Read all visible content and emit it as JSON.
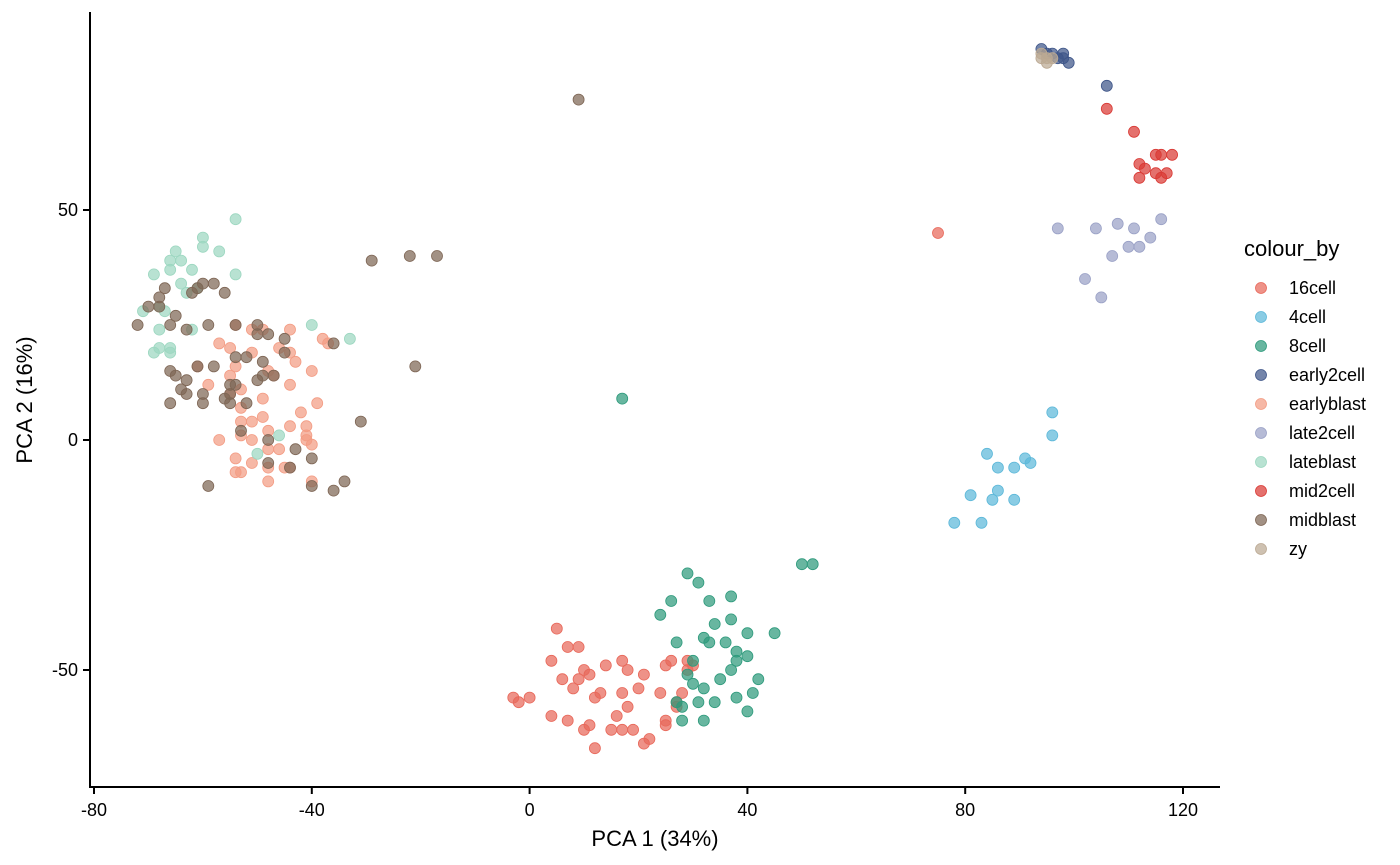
{
  "chart_data": {
    "type": "scatter",
    "title": "",
    "xlabel": "PCA 1 (34%)",
    "ylabel": "PCA 2 (16%)",
    "xlim": [
      -81,
      127
    ],
    "ylim": [
      -76,
      86
    ],
    "x_ticks": [
      -80,
      -40,
      0,
      40,
      80,
      120
    ],
    "x_tick_labels": [
      "-80",
      "-40",
      "0",
      "40",
      "80",
      "120"
    ],
    "y_ticks": [
      -50,
      0,
      50
    ],
    "y_tick_labels": [
      "-50",
      "0",
      "50"
    ],
    "grid": false,
    "legend": {
      "title": "colour_by",
      "position": "right"
    },
    "series": [
      {
        "name": "16cell",
        "color": "#e8685a",
        "points": [
          [
            75,
            45
          ],
          [
            5,
            -41
          ],
          [
            9,
            -45
          ],
          [
            7,
            -45
          ],
          [
            4,
            -48
          ],
          [
            10,
            -50
          ],
          [
            11,
            -51
          ],
          [
            14,
            -49
          ],
          [
            17,
            -48
          ],
          [
            18,
            -50
          ],
          [
            21,
            -51
          ],
          [
            6,
            -52
          ],
          [
            9,
            -52
          ],
          [
            8,
            -54
          ],
          [
            12,
            -56
          ],
          [
            13,
            -55
          ],
          [
            17,
            -55
          ],
          [
            20,
            -54
          ],
          [
            24,
            -55
          ],
          [
            -3,
            -56
          ],
          [
            -2,
            -57
          ],
          [
            0,
            -56
          ],
          [
            4,
            -60
          ],
          [
            7,
            -61
          ],
          [
            11,
            -62
          ],
          [
            10,
            -63
          ],
          [
            16,
            -60
          ],
          [
            18,
            -58
          ],
          [
            15,
            -63
          ],
          [
            17,
            -63
          ],
          [
            19,
            -63
          ],
          [
            22,
            -65
          ],
          [
            21,
            -66
          ],
          [
            12,
            -67
          ],
          [
            25,
            -61
          ],
          [
            25,
            -62
          ],
          [
            27,
            -57
          ],
          [
            27,
            -58
          ],
          [
            28,
            -55
          ],
          [
            29,
            -48
          ],
          [
            29,
            -50
          ],
          [
            30,
            -49
          ],
          [
            26,
            -48
          ],
          [
            25,
            -49
          ]
        ]
      },
      {
        "name": "4cell",
        "color": "#5db8d9",
        "points": [
          [
            96,
            6
          ],
          [
            96,
            1
          ],
          [
            84,
            -3
          ],
          [
            86,
            -6
          ],
          [
            89,
            -6
          ],
          [
            92,
            -5
          ],
          [
            91,
            -4
          ],
          [
            81,
            -12
          ],
          [
            86,
            -11
          ],
          [
            85,
            -13
          ],
          [
            89,
            -13
          ],
          [
            78,
            -18
          ],
          [
            83,
            -18
          ]
        ]
      },
      {
        "name": "8cell",
        "color": "#2e9a7c",
        "points": [
          [
            17,
            9
          ],
          [
            29,
            -29
          ],
          [
            31,
            -31
          ],
          [
            50,
            -27
          ],
          [
            52,
            -27
          ],
          [
            26,
            -35
          ],
          [
            33,
            -35
          ],
          [
            24,
            -38
          ],
          [
            37,
            -34
          ],
          [
            34,
            -40
          ],
          [
            37,
            -39
          ],
          [
            40,
            -42
          ],
          [
            45,
            -42
          ],
          [
            27,
            -44
          ],
          [
            33,
            -44
          ],
          [
            32,
            -43
          ],
          [
            36,
            -44
          ],
          [
            38,
            -46
          ],
          [
            38,
            -48
          ],
          [
            40,
            -47
          ],
          [
            30,
            -48
          ],
          [
            29,
            -51
          ],
          [
            30,
            -53
          ],
          [
            32,
            -54
          ],
          [
            37,
            -50
          ],
          [
            42,
            -52
          ],
          [
            35,
            -52
          ],
          [
            41,
            -55
          ],
          [
            38,
            -56
          ],
          [
            27,
            -57
          ],
          [
            28,
            -58
          ],
          [
            31,
            -57
          ],
          [
            34,
            -57
          ],
          [
            40,
            -59
          ],
          [
            28,
            -61
          ],
          [
            32,
            -61
          ]
        ]
      },
      {
        "name": "early2cell",
        "color": "#3f5689",
        "points": [
          [
            94,
            85
          ],
          [
            95,
            84
          ],
          [
            96,
            84
          ],
          [
            98,
            84
          ],
          [
            98,
            83
          ],
          [
            99,
            82
          ],
          [
            97,
            83
          ],
          [
            106,
            77
          ]
        ]
      },
      {
        "name": "earlyblast",
        "color": "#f39c84",
        "points": [
          [
            -54,
            25
          ],
          [
            -51,
            24
          ],
          [
            -49,
            24
          ],
          [
            -44,
            24
          ],
          [
            -38,
            22
          ],
          [
            -37,
            21
          ],
          [
            -57,
            21
          ],
          [
            -55,
            20
          ],
          [
            -51,
            19
          ],
          [
            -46,
            20
          ],
          [
            -44,
            19
          ],
          [
            -61,
            16
          ],
          [
            -54,
            16
          ],
          [
            -43,
            17
          ],
          [
            -55,
            14
          ],
          [
            -48,
            15
          ],
          [
            -47,
            14
          ],
          [
            -40,
            15
          ],
          [
            -59,
            12
          ],
          [
            -53,
            11
          ],
          [
            -44,
            12
          ],
          [
            -55,
            10
          ],
          [
            -49,
            9
          ],
          [
            -39,
            8
          ],
          [
            -53,
            7
          ],
          [
            -42,
            6
          ],
          [
            -53,
            4
          ],
          [
            -51,
            4
          ],
          [
            -49,
            5
          ],
          [
            -41,
            3
          ],
          [
            -48,
            2
          ],
          [
            -44,
            3
          ],
          [
            -41,
            1
          ],
          [
            -57,
            0
          ],
          [
            -53,
            1
          ],
          [
            -51,
            0
          ],
          [
            -40,
            -1
          ],
          [
            -41,
            0
          ],
          [
            -48,
            -2
          ],
          [
            -46,
            -2
          ],
          [
            -54,
            -4
          ],
          [
            -51,
            -5
          ],
          [
            -45,
            -6
          ],
          [
            -44,
            -6
          ],
          [
            -48,
            -6
          ],
          [
            -53,
            -7
          ],
          [
            -54,
            -7
          ],
          [
            -48,
            -9
          ],
          [
            -40,
            -9
          ]
        ]
      },
      {
        "name": "late2cell",
        "color": "#9aa1c6",
        "points": [
          [
            97,
            46
          ],
          [
            104,
            46
          ],
          [
            108,
            47
          ],
          [
            111,
            46
          ],
          [
            116,
            48
          ],
          [
            114,
            44
          ],
          [
            112,
            42
          ],
          [
            110,
            42
          ],
          [
            107,
            40
          ],
          [
            102,
            35
          ],
          [
            105,
            31
          ]
        ]
      },
      {
        "name": "lateblast",
        "color": "#9cd7c0",
        "points": [
          [
            -54,
            48
          ],
          [
            -60,
            44
          ],
          [
            -60,
            42
          ],
          [
            -65,
            41
          ],
          [
            -57,
            41
          ],
          [
            -66,
            39
          ],
          [
            -64,
            39
          ],
          [
            -69,
            36
          ],
          [
            -66,
            37
          ],
          [
            -62,
            37
          ],
          [
            -54,
            36
          ],
          [
            -64,
            34
          ],
          [
            -61,
            33
          ],
          [
            -63,
            32
          ],
          [
            -68,
            29
          ],
          [
            -67,
            28
          ],
          [
            -71,
            28
          ],
          [
            -62,
            24
          ],
          [
            -40,
            25
          ],
          [
            -33,
            22
          ],
          [
            -68,
            24
          ],
          [
            -66,
            20
          ],
          [
            -68,
            20
          ],
          [
            -69,
            19
          ],
          [
            -66,
            19
          ],
          [
            -50,
            -3
          ],
          [
            -46,
            1
          ]
        ]
      },
      {
        "name": "mid2cell",
        "color": "#d93a35",
        "points": [
          [
            106,
            72
          ],
          [
            111,
            67
          ],
          [
            115,
            62
          ],
          [
            116,
            62
          ],
          [
            118,
            62
          ],
          [
            112,
            60
          ],
          [
            113,
            59
          ],
          [
            115,
            58
          ],
          [
            117,
            58
          ],
          [
            112,
            57
          ],
          [
            116,
            57
          ]
        ]
      },
      {
        "name": "midblast",
        "color": "#7e6655",
        "points": [
          [
            9,
            74
          ],
          [
            -29,
            39
          ],
          [
            -22,
            40
          ],
          [
            -17,
            40
          ],
          [
            -60,
            34
          ],
          [
            -61,
            33
          ],
          [
            -58,
            34
          ],
          [
            -56,
            32
          ],
          [
            -62,
            32
          ],
          [
            -67,
            33
          ],
          [
            -68,
            31
          ],
          [
            -70,
            29
          ],
          [
            -68,
            29
          ],
          [
            -65,
            27
          ],
          [
            -72,
            25
          ],
          [
            -66,
            25
          ],
          [
            -63,
            24
          ],
          [
            -59,
            25
          ],
          [
            -54,
            25
          ],
          [
            -50,
            25
          ],
          [
            -50,
            23
          ],
          [
            -48,
            23
          ],
          [
            -45,
            22
          ],
          [
            -36,
            21
          ],
          [
            -54,
            18
          ],
          [
            -52,
            18
          ],
          [
            -49,
            17
          ],
          [
            -45,
            19
          ],
          [
            -61,
            16
          ],
          [
            -66,
            15
          ],
          [
            -65,
            14
          ],
          [
            -63,
            13
          ],
          [
            -58,
            16
          ],
          [
            -21,
            16
          ],
          [
            -54,
            12
          ],
          [
            -55,
            12
          ],
          [
            -64,
            11
          ],
          [
            -63,
            10
          ],
          [
            -60,
            10
          ],
          [
            -55,
            10
          ],
          [
            -49,
            14
          ],
          [
            -50,
            13
          ],
          [
            -47,
            14
          ],
          [
            -66,
            8
          ],
          [
            -60,
            8
          ],
          [
            -56,
            9
          ],
          [
            -55,
            8
          ],
          [
            -52,
            8
          ],
          [
            -31,
            4
          ],
          [
            -53,
            2
          ],
          [
            -48,
            0
          ],
          [
            -43,
            -2
          ],
          [
            -40,
            -4
          ],
          [
            -44,
            -6
          ],
          [
            -48,
            -5
          ],
          [
            -40,
            -10
          ],
          [
            -36,
            -11
          ],
          [
            -34,
            -9
          ],
          [
            -59,
            -10
          ]
        ]
      },
      {
        "name": "zy",
        "color": "#bba993",
        "points": [
          [
            94,
            84
          ],
          [
            94,
            83
          ],
          [
            95,
            83
          ],
          [
            96,
            83
          ],
          [
            95,
            82
          ]
        ]
      }
    ]
  }
}
